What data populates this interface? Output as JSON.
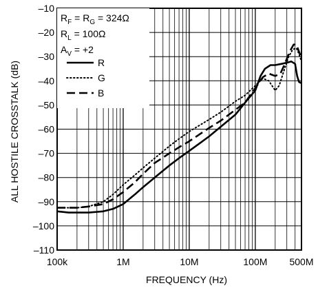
{
  "chart_data": {
    "type": "line",
    "xlabel": "FREQUENCY (Hz)",
    "ylabel": "ALL HOSTILE CROSSTALK (dB)",
    "x_scale": "log",
    "xlim": [
      100000,
      500000000
    ],
    "ylim": [
      -110,
      -10
    ],
    "grid": true,
    "x_ticks": [
      {
        "value": 100000,
        "label": "100k"
      },
      {
        "value": 1000000,
        "label": "1M"
      },
      {
        "value": 10000000,
        "label": "10M"
      },
      {
        "value": 100000000,
        "label": "100M"
      },
      {
        "value": 500000000,
        "label": "500M"
      }
    ],
    "y_ticks": [
      {
        "value": -10,
        "label": "–10"
      },
      {
        "value": -20,
        "label": "–20"
      },
      {
        "value": -30,
        "label": "–30"
      },
      {
        "value": -40,
        "label": "–40"
      },
      {
        "value": -50,
        "label": "–50"
      },
      {
        "value": -60,
        "label": "–60"
      },
      {
        "value": -70,
        "label": "–70"
      },
      {
        "value": -80,
        "label": "–80"
      },
      {
        "value": -90,
        "label": "–90"
      },
      {
        "value": -100,
        "label": "–100"
      },
      {
        "value": -110,
        "label": "–110"
      }
    ],
    "conditions": {
      "line1": {
        "a": "R",
        "a_sub": "F",
        "eq": " = R",
        "b_sub": "G",
        "rest": " = 324Ω"
      },
      "line2": {
        "a": "R",
        "a_sub": "L",
        "rest": " = 100Ω"
      },
      "line3": {
        "a": "A",
        "a_sub": "V",
        "rest": " = +2"
      }
    },
    "legend_position": "top-left",
    "series": [
      {
        "name": "R",
        "style": "solid",
        "points": [
          [
            100000,
            -94
          ],
          [
            150000,
            -94.5
          ],
          [
            200000,
            -94.5
          ],
          [
            300000,
            -94.5
          ],
          [
            500000,
            -94
          ],
          [
            700000,
            -93
          ],
          [
            1000000,
            -91
          ],
          [
            1500000,
            -87
          ],
          [
            2000000,
            -84
          ],
          [
            3000000,
            -80
          ],
          [
            5000000,
            -75
          ],
          [
            7000000,
            -72
          ],
          [
            10000000,
            -69
          ],
          [
            15000000,
            -65.5
          ],
          [
            20000000,
            -63
          ],
          [
            30000000,
            -59
          ],
          [
            50000000,
            -54
          ],
          [
            70000000,
            -49
          ],
          [
            100000000,
            -44
          ],
          [
            120000000,
            -38
          ],
          [
            140000000,
            -35
          ],
          [
            170000000,
            -33.5
          ],
          [
            200000000,
            -33.5
          ],
          [
            250000000,
            -33
          ],
          [
            300000000,
            -32.5
          ],
          [
            350000000,
            -32
          ],
          [
            400000000,
            -33
          ],
          [
            430000000,
            -38
          ],
          [
            460000000,
            -40.5
          ],
          [
            500000000,
            -41
          ]
        ]
      },
      {
        "name": "G",
        "style": "dotted",
        "points": [
          [
            100000,
            -92.5
          ],
          [
            200000,
            -92.5
          ],
          [
            300000,
            -92
          ],
          [
            500000,
            -90
          ],
          [
            700000,
            -87
          ],
          [
            1000000,
            -83
          ],
          [
            1500000,
            -79
          ],
          [
            2000000,
            -76
          ],
          [
            3000000,
            -72
          ],
          [
            5000000,
            -67
          ],
          [
            7000000,
            -64
          ],
          [
            10000000,
            -61
          ],
          [
            20000000,
            -56
          ],
          [
            30000000,
            -53
          ],
          [
            50000000,
            -48.5
          ],
          [
            70000000,
            -46
          ],
          [
            100000000,
            -42
          ],
          [
            130000000,
            -39
          ],
          [
            160000000,
            -40
          ],
          [
            200000000,
            -44
          ],
          [
            230000000,
            -42
          ],
          [
            270000000,
            -36
          ],
          [
            320000000,
            -30
          ],
          [
            370000000,
            -27
          ],
          [
            420000000,
            -26.5
          ],
          [
            460000000,
            -29
          ],
          [
            500000000,
            -32
          ]
        ]
      },
      {
        "name": "B",
        "style": "dashed",
        "points": [
          [
            100000,
            -92.5
          ],
          [
            200000,
            -92.5
          ],
          [
            300000,
            -92
          ],
          [
            500000,
            -91
          ],
          [
            700000,
            -89
          ],
          [
            1000000,
            -86
          ],
          [
            1500000,
            -82
          ],
          [
            2000000,
            -78.5
          ],
          [
            3000000,
            -74
          ],
          [
            5000000,
            -70
          ],
          [
            7000000,
            -67.5
          ],
          [
            10000000,
            -65
          ],
          [
            20000000,
            -59.5
          ],
          [
            30000000,
            -56.5
          ],
          [
            50000000,
            -52
          ],
          [
            70000000,
            -49
          ],
          [
            100000000,
            -43
          ],
          [
            130000000,
            -38.5
          ],
          [
            160000000,
            -37
          ],
          [
            200000000,
            -38
          ],
          [
            240000000,
            -37
          ],
          [
            280000000,
            -33
          ],
          [
            330000000,
            -28
          ],
          [
            380000000,
            -25
          ],
          [
            420000000,
            -25
          ],
          [
            460000000,
            -28
          ],
          [
            500000000,
            -30.5
          ]
        ]
      }
    ]
  }
}
